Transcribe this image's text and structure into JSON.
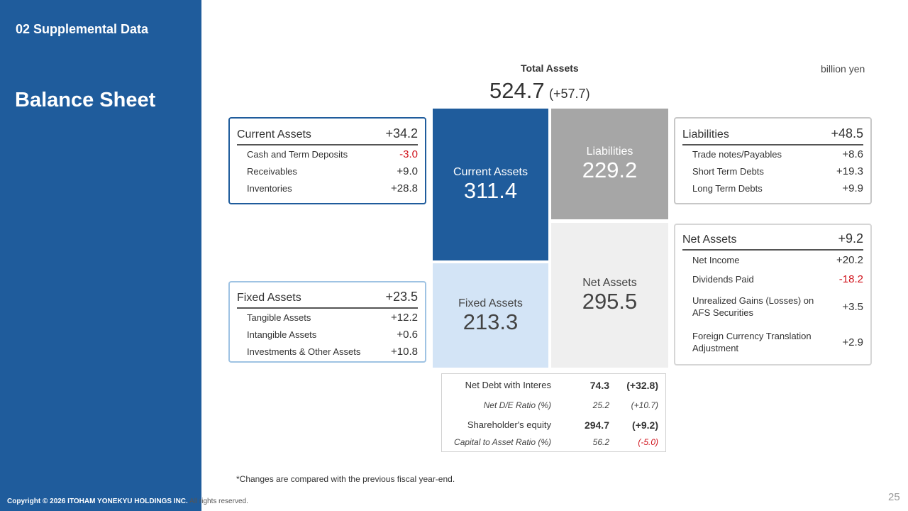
{
  "header": {
    "section": "02 Supplemental Data",
    "title": "Balance Sheet",
    "unit": "billion yen"
  },
  "total": {
    "label": "Total Assets",
    "value": "524.7",
    "change": "(+57.7)"
  },
  "blocks": {
    "current_assets": {
      "label": "Current Assets",
      "value": "311.4"
    },
    "fixed_assets": {
      "label": "Fixed Assets",
      "value": "213.3"
    },
    "liabilities": {
      "label": "Liabilities",
      "value": "229.2"
    },
    "net_assets": {
      "label": "Net Assets",
      "value": "295.5"
    }
  },
  "cards": {
    "current_assets": {
      "title": "Current Assets",
      "change": "+34.2",
      "rows": [
        {
          "label": "Cash and Term Deposits",
          "value": "-3.0"
        },
        {
          "label": "Receivables",
          "value": "+9.0"
        },
        {
          "label": "Inventories",
          "value": "+28.8"
        }
      ]
    },
    "fixed_assets": {
      "title": "Fixed Assets",
      "change": "+23.5",
      "rows": [
        {
          "label": "Tangible Assets",
          "value": "+12.2"
        },
        {
          "label": "Intangible Assets",
          "value": "+0.6"
        },
        {
          "label": "Investments & Other Assets",
          "value": "+10.8"
        }
      ]
    },
    "liabilities": {
      "title": "Liabilities",
      "change": "+48.5",
      "rows": [
        {
          "label": "Trade notes/Payables",
          "value": "+8.6"
        },
        {
          "label": "Short Term Debts",
          "value": "+19.3"
        },
        {
          "label": "Long Term Debts",
          "value": "+9.9"
        }
      ]
    },
    "net_assets": {
      "title": "Net Assets",
      "change": "+9.2",
      "rows": [
        {
          "label": "Net Income",
          "value": "+20.2"
        },
        {
          "label": "Dividends Paid",
          "value": "-18.2"
        },
        {
          "label": "Unrealized Gains (Losses) on AFS Securities",
          "value": "+3.5"
        },
        {
          "label": "Foreign Currency Translation Adjustment",
          "value": "+2.9"
        }
      ]
    }
  },
  "metrics": [
    {
      "label": "Net Debt with Interes",
      "value": "74.3",
      "change": "(+32.8)"
    },
    {
      "label": "Net D/E Ratio (%)",
      "value": "25.2",
      "change": "(+10.7)"
    },
    {
      "label": "Shareholder's equity",
      "value": "294.7",
      "change": "(+9.2)"
    },
    {
      "label": "Capital to Asset Ratio (%)",
      "value": "56.2",
      "change": "(-5.0)"
    }
  ],
  "footnote": "*Changes are compared with the previous fiscal year-end.",
  "footer": {
    "copyright": "Copyright © 2026 ITOHAM YONEKYU HOLDINGS INC.",
    "rights": " All rights reserved.",
    "page": "25"
  },
  "colors": {
    "brand_blue": "#1f5c9c",
    "light_blue": "#d3e4f6",
    "liabilities_gray": "#a6a6a6",
    "net_assets_gray": "#efefef",
    "negative_red": "#d0121b"
  }
}
